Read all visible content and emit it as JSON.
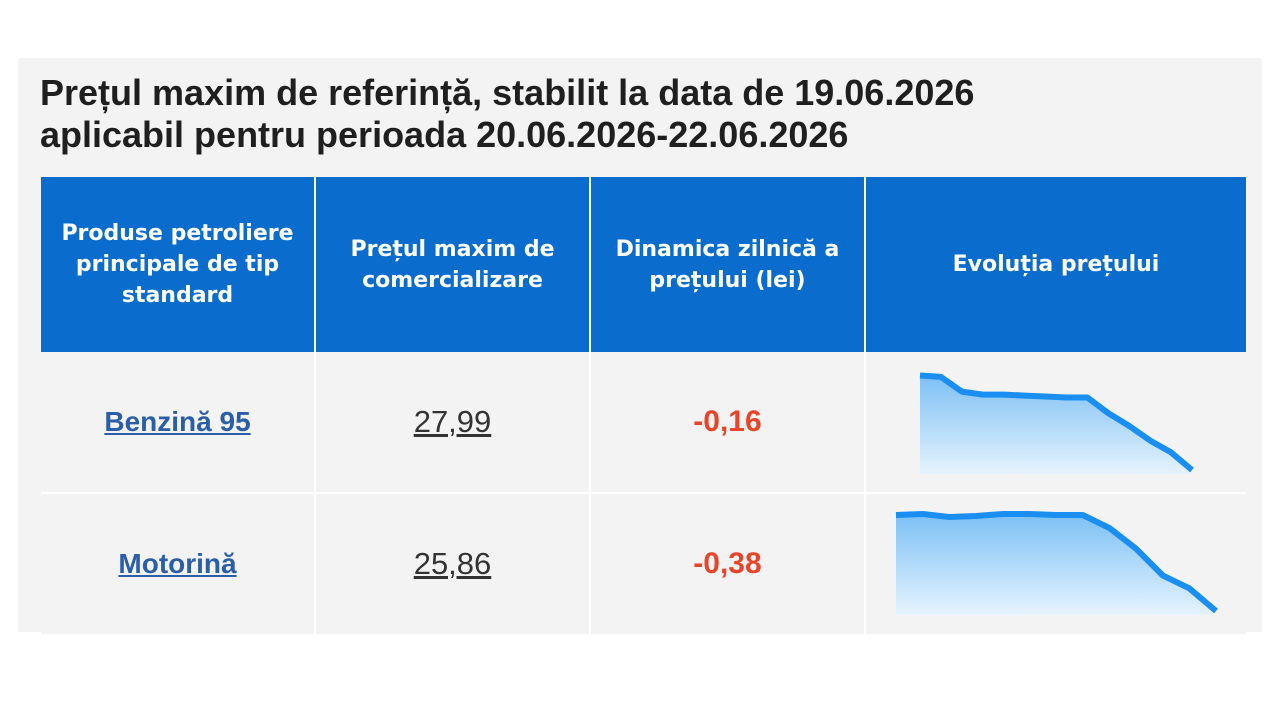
{
  "title": {
    "line1": "Prețul maxim de referință, stabilit la data de 19.06.2026",
    "line2": "aplicabil pentru perioada 20.06.2026-22.06.2026"
  },
  "table": {
    "headers": [
      "Produse petroliere principale de tip standard",
      "Prețul maxim de comercializare",
      "Dinamica zilnică a prețului (lei)",
      "Evoluția prețului"
    ],
    "rows": [
      {
        "product": "Benzină 95",
        "price": "27,99",
        "delta": "-0,16",
        "trend": [
          0.985,
          0.97,
          0.82,
          0.79,
          0.79,
          0.78,
          0.77,
          0.76,
          0.76,
          0.6,
          0.47,
          0.32,
          0.2,
          0.02
        ]
      },
      {
        "product": "Motorină",
        "price": "25,86",
        "delta": "-0,38",
        "trend": [
          0.99,
          1.0,
          0.97,
          0.98,
          1.0,
          1.0,
          0.99,
          0.99,
          0.86,
          0.65,
          0.38,
          0.25,
          0.02
        ]
      }
    ]
  },
  "colors": {
    "header_bg": "#0a6ccc",
    "negative": "#e8442a",
    "spark_line": "#1b8ef2",
    "spark_fill_top": "#7cc0f5",
    "spark_fill_bottom": "#e6f3fd",
    "link": "#2b5ea8"
  }
}
